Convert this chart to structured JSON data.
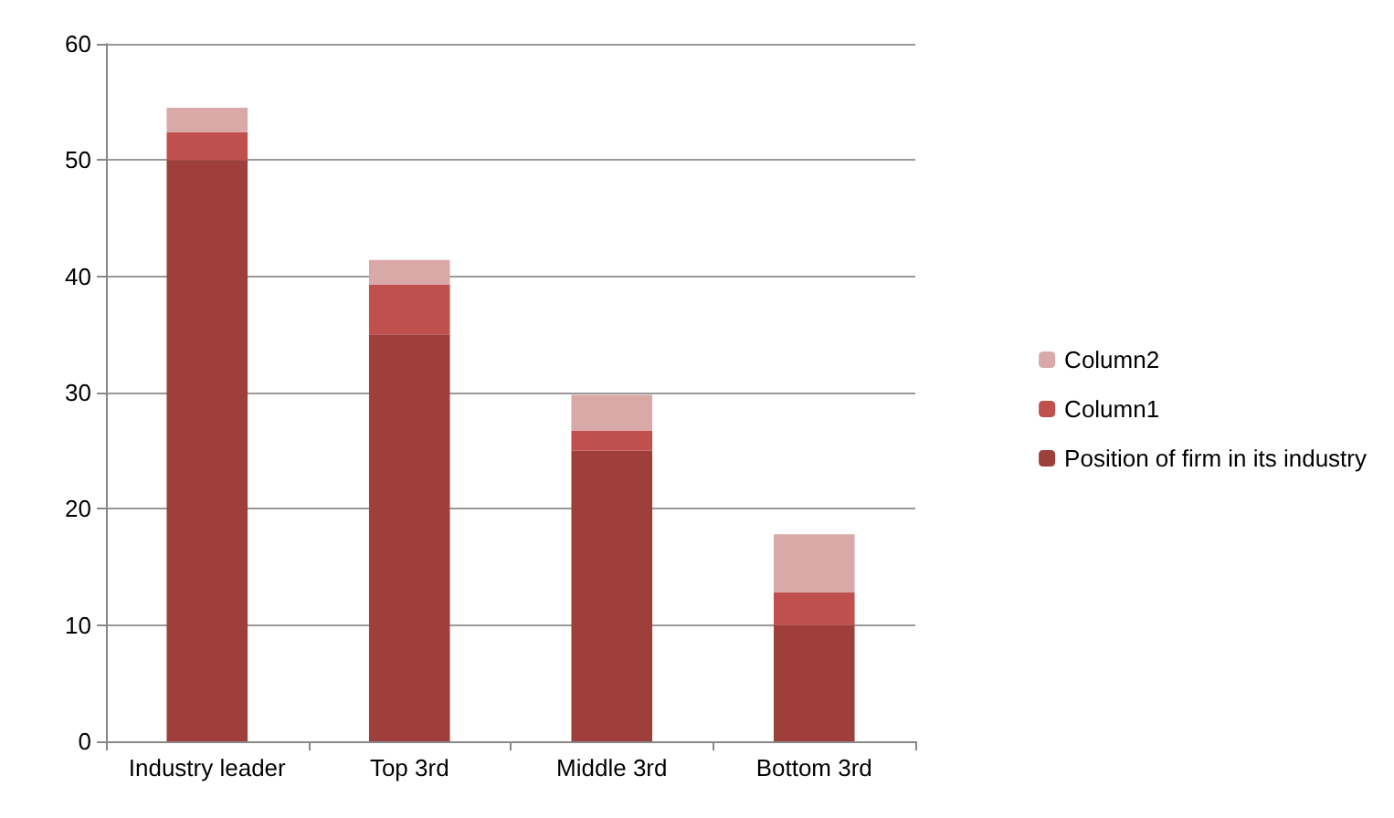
{
  "chart_data": {
    "type": "bar",
    "stacked": true,
    "categories": [
      "Industry leader",
      "Top 3rd",
      "Middle 3rd",
      "Bottom 3rd"
    ],
    "series": [
      {
        "name": "Position of firm in its industry",
        "color": "#9e3f3c",
        "values": [
          50,
          35,
          25,
          10
        ]
      },
      {
        "name": "Column1",
        "color": "#c0504d",
        "values": [
          2.4,
          4.3,
          1.7,
          2.8
        ]
      },
      {
        "name": "Column2",
        "color": "#d9a9a8",
        "values": [
          2.1,
          2.1,
          3.1,
          5.0
        ]
      }
    ],
    "ylim": [
      0,
      60
    ],
    "yticks": [
      0,
      10,
      20,
      30,
      40,
      50,
      60
    ],
    "grid": "y",
    "legend": "right"
  }
}
